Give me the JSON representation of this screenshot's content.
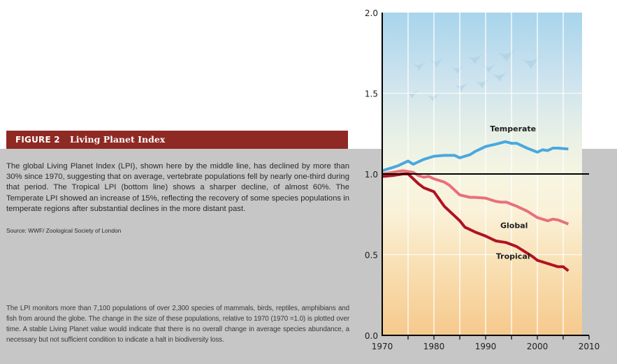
{
  "figure": {
    "number_label": "FIGURE 2",
    "title": "Living Planet Index",
    "caption": "The global Living Planet Index (LPI), shown here by the middle line, has declined by more than 30% since 1970, suggesting that on average, vertebrate populations fell by nearly one-third during that period. The Tropical LPI (bottom line) shows a sharper decline, of almost 60%. The Temperate LPI showed an increase of 15%, reflecting the recovery of some species populations in temperate regions after substantial declines in the more distant past.",
    "source": "Source: WWF/ Zoological Society of London",
    "description": "The LPI monitors more than 7,100 populations of over 2,300 species of mammals, birds, reptiles, amphibians and fish from around the globe. The change in the size of these populations, relative to 1970 (1970 =1.0) is plotted over time. A stable Living Planet value would indicate that there is no overall change in average species abundance, a necessary but not sufficient condition to indicate a halt in biodiversity loss."
  },
  "colors": {
    "header_bg": "#8f2923",
    "temperate": "#4aa8df",
    "global": "#e8707a",
    "tropical": "#b01224",
    "sky_top": "#a8d4ec",
    "ground_bottom": "#f6c98c"
  },
  "chart_data": {
    "type": "line",
    "title": "Living Planet Index",
    "xlabel": "",
    "ylabel": "",
    "xlim": [
      1970,
      2010
    ],
    "ylim": [
      0.0,
      2.0
    ],
    "x_ticks": [
      "1970",
      "1980",
      "1990",
      "2000",
      "2010"
    ],
    "y_ticks": [
      "0.0",
      "0.5",
      "1.0",
      "1.5",
      "2.0"
    ],
    "reference_line": 1.0,
    "grid": true,
    "legend": "inline labels",
    "series": [
      {
        "name": "Temperate",
        "x": [
          1970,
          1972,
          1973,
          1975,
          1976,
          1978,
          1980,
          1982,
          1984,
          1985,
          1987,
          1988,
          1989,
          1990,
          1992,
          1993.8,
          1995,
          1996,
          1998,
          2000,
          2001,
          2002,
          2003,
          2004,
          2006
        ],
        "values": [
          1.02,
          1.04,
          1.05,
          1.08,
          1.06,
          1.09,
          1.11,
          1.115,
          1.115,
          1.1,
          1.12,
          1.14,
          1.155,
          1.17,
          1.185,
          1.2,
          1.19,
          1.19,
          1.16,
          1.135,
          1.15,
          1.145,
          1.16,
          1.16,
          1.155
        ]
      },
      {
        "name": "Global",
        "x": [
          1970,
          1972,
          1974,
          1976,
          1977,
          1978,
          1979,
          1980,
          1982,
          1983,
          1984,
          1985,
          1987,
          1988,
          1990,
          1992,
          1993,
          1994,
          1996,
          1998,
          2000,
          2001,
          2002,
          2003,
          2004,
          2006
        ],
        "values": [
          1.0,
          1.01,
          1.02,
          1.01,
          0.99,
          0.98,
          0.985,
          0.97,
          0.95,
          0.93,
          0.9,
          0.87,
          0.855,
          0.855,
          0.85,
          0.83,
          0.825,
          0.825,
          0.8,
          0.77,
          0.73,
          0.72,
          0.71,
          0.72,
          0.715,
          0.69
        ]
      },
      {
        "name": "Tropical",
        "x": [
          1970,
          1972,
          1974,
          1975,
          1976,
          1977,
          1978,
          1980,
          1982,
          1984,
          1985,
          1986,
          1987,
          1988,
          1990,
          1992,
          1994,
          1996,
          1998,
          1999,
          2000,
          2001,
          2002,
          2003,
          2004,
          2005,
          2006
        ],
        "values": [
          0.985,
          0.99,
          1.0,
          1.0,
          0.97,
          0.94,
          0.915,
          0.89,
          0.8,
          0.74,
          0.71,
          0.67,
          0.655,
          0.64,
          0.615,
          0.585,
          0.575,
          0.55,
          0.51,
          0.49,
          0.465,
          0.455,
          0.445,
          0.435,
          0.425,
          0.425,
          0.4
        ]
      }
    ]
  }
}
